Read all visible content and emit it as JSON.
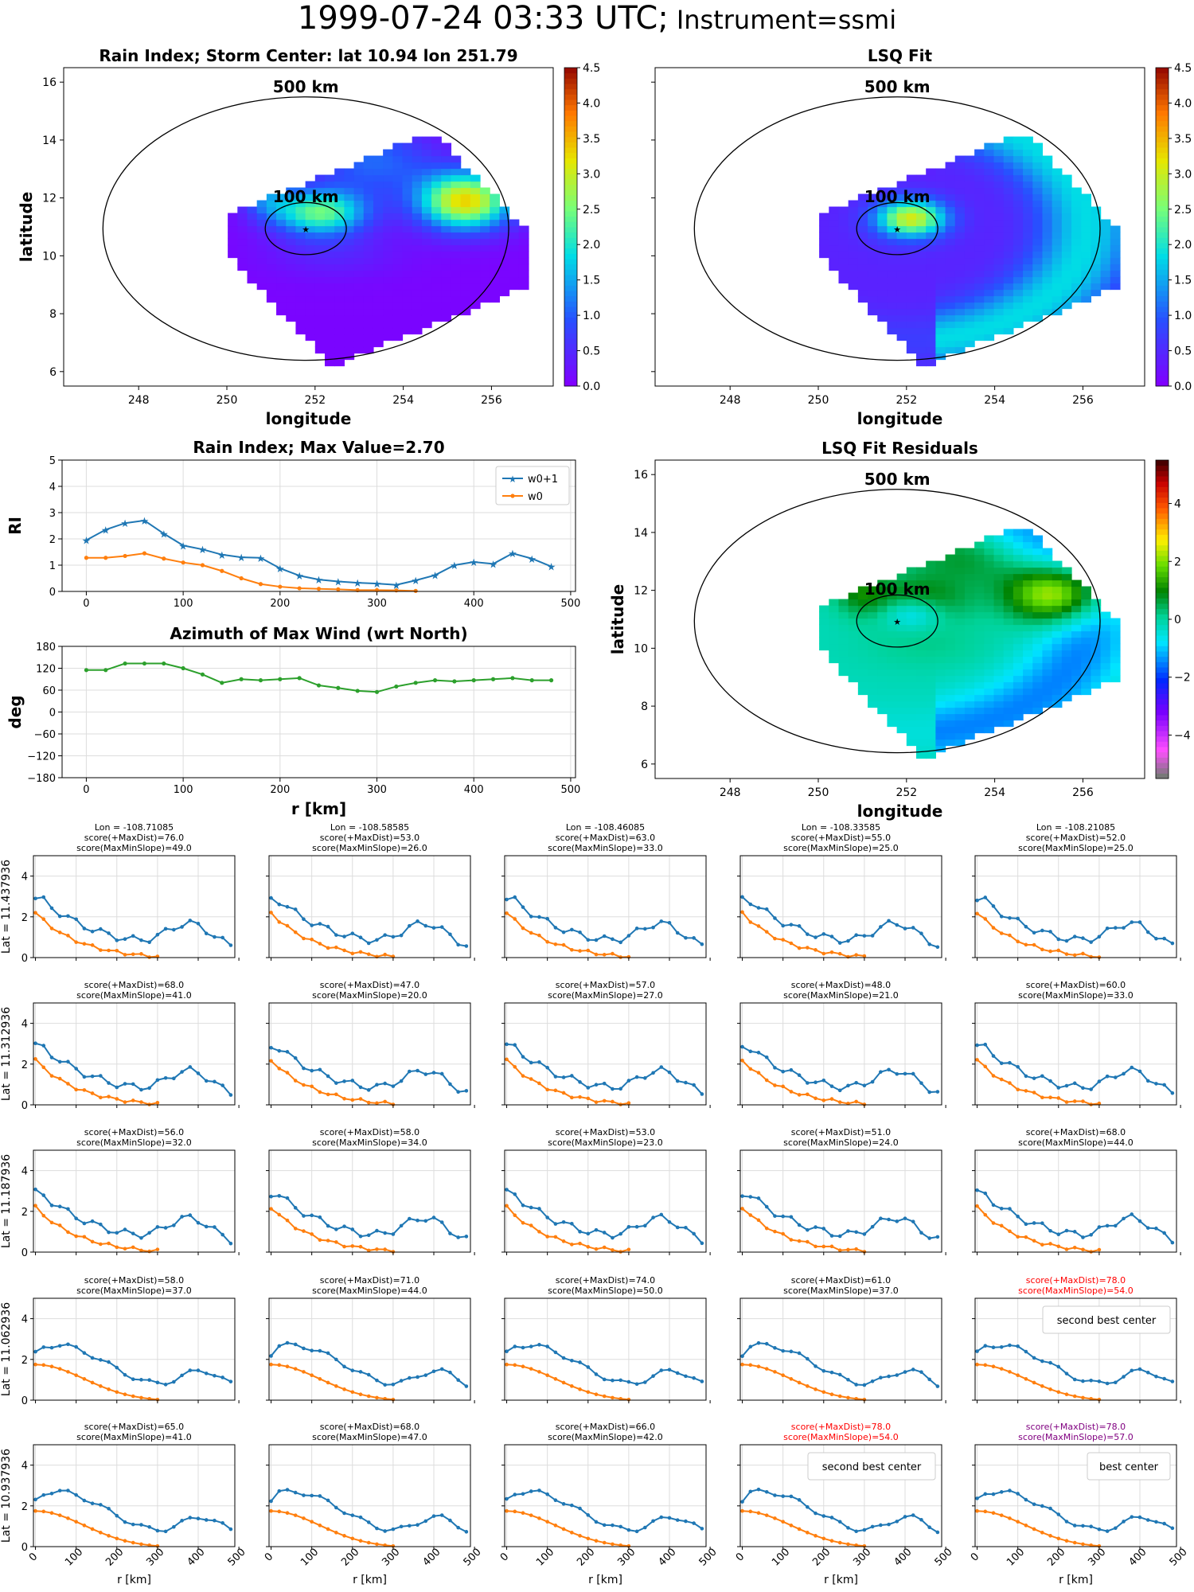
{
  "suptitle": {
    "time": "1999-07-24 03:33 UTC;",
    "instrument": "Instrument=ssmi"
  },
  "maps": [
    {
      "title": "Rain Index; Storm Center: lat 10.94 lon 251.79",
      "xlabel": "longitude",
      "ylabel": "latitude",
      "xticks": [
        "248",
        "250",
        "252",
        "254",
        "256"
      ],
      "yticks": [
        "6",
        "8",
        "10",
        "12",
        "14",
        "16"
      ],
      "ring_labels": [
        "500 km",
        "100 km"
      ],
      "colorbar_ticks": [
        "0.0",
        "0.5",
        "1.0",
        "1.5",
        "2.0",
        "2.5",
        "3.0",
        "3.5",
        "4.0",
        "4.5"
      ],
      "colormap": "jet"
    },
    {
      "title": "LSQ Fit",
      "xlabel": "longitude",
      "ylabel": "",
      "xticks": [
        "248",
        "250",
        "252",
        "254",
        "256"
      ],
      "yticks": [],
      "ring_labels": [
        "500 km",
        "100 km"
      ],
      "colorbar_ticks": [
        "0.0",
        "0.5",
        "1.0",
        "1.5",
        "2.0",
        "2.5",
        "3.0",
        "3.5",
        "4.0",
        "4.5"
      ],
      "colormap": "jet"
    },
    {
      "title": "LSQ Fit Residuals",
      "xlabel": "longitude",
      "ylabel": "latitude",
      "xticks": [
        "248",
        "250",
        "252",
        "254",
        "256"
      ],
      "yticks": [
        "6",
        "8",
        "10",
        "12",
        "14",
        "16"
      ],
      "ring_labels": [
        "500 km",
        "100 km"
      ],
      "colorbar_ticks": [
        "−4",
        "−2",
        "0",
        "2",
        "4"
      ],
      "colormap": "gist_ncar"
    }
  ],
  "chart_data": [
    {
      "type": "line",
      "title": "Rain Index; Max Value=2.70",
      "ylabel": "RI",
      "ylim": [
        0,
        5
      ],
      "yticks": [
        "0",
        "1",
        "2",
        "3",
        "4",
        "5"
      ],
      "xticks": [
        "0",
        "100",
        "200",
        "300",
        "400",
        "500"
      ],
      "xlim": [
        -25,
        505
      ],
      "x": [
        0,
        20,
        40,
        60,
        80,
        100,
        120,
        140,
        160,
        180,
        200,
        220,
        240,
        260,
        280,
        300,
        320,
        340,
        360,
        380,
        400,
        420,
        440,
        460,
        480
      ],
      "series": [
        {
          "name": "w0+1",
          "color": "#1f77b4",
          "marker": "star",
          "values": [
            1.95,
            2.35,
            2.6,
            2.7,
            2.2,
            1.75,
            1.6,
            1.4,
            1.3,
            1.28,
            0.88,
            0.6,
            0.45,
            0.38,
            0.33,
            0.3,
            0.25,
            0.42,
            0.62,
            1.0,
            1.12,
            1.05,
            1.45,
            1.25,
            0.95
          ]
        },
        {
          "name": "w0",
          "color": "#ff7f0e",
          "marker": "dot",
          "values": [
            1.28,
            1.28,
            1.35,
            1.45,
            1.25,
            1.1,
            1.0,
            0.78,
            0.5,
            0.28,
            0.18,
            0.12,
            0.1,
            0.08,
            0.05,
            0.05,
            0.04,
            0.02,
            null,
            null,
            null,
            null,
            null,
            null,
            null
          ]
        }
      ]
    },
    {
      "type": "line",
      "title": "Azimuth of Max Wind (wrt North)",
      "ylabel": "deg",
      "xlabel": "r [km]",
      "ylim": [
        -180,
        180
      ],
      "yticks": [
        "180",
        "120",
        "60",
        "0",
        "−60",
        "−120",
        "−180"
      ],
      "xticks": [
        "0",
        "100",
        "200",
        "300",
        "400",
        "500"
      ],
      "xlim": [
        -25,
        505
      ],
      "x": [
        0,
        20,
        40,
        60,
        80,
        100,
        120,
        140,
        160,
        180,
        200,
        220,
        240,
        260,
        280,
        300,
        320,
        340,
        360,
        380,
        400,
        420,
        440,
        460,
        480
      ],
      "series": [
        {
          "color": "#2ca02c",
          "values": [
            115,
            115,
            133,
            133,
            133,
            120,
            103,
            80,
            90,
            87,
            90,
            93,
            73,
            66,
            58,
            55,
            70,
            80,
            87,
            84,
            87,
            90,
            93,
            87,
            87
          ]
        }
      ]
    },
    {
      "type": "line",
      "grid": "5x5 small multiples",
      "row_labels": [
        "Lat = 11.437936",
        "Lat = 11.312936",
        "Lat = 11.187936",
        "Lat = 11.062936",
        "Lat = 10.937936"
      ],
      "col_lons": [
        "Lon = -108.71085",
        "Lon = -108.58585",
        "Lon = -108.46085",
        "Lon = -108.33585",
        "Lon = -108.21085"
      ],
      "xlabel": "r [km]",
      "ylim": [
        0,
        5
      ],
      "yticks": [
        "0",
        "2",
        "4"
      ],
      "xticks": [
        "0",
        "100",
        "200",
        "300",
        "400",
        "500"
      ],
      "cells": [
        [
          {
            "t1": "score(+MaxDist)=76.0",
            "t2": "score(MaxMinSlope)=49.0"
          },
          {
            "t1": "score(+MaxDist)=53.0",
            "t2": "score(MaxMinSlope)=26.0"
          },
          {
            "t1": "score(+MaxDist)=63.0",
            "t2": "score(MaxMinSlope)=33.0"
          },
          {
            "t1": "score(+MaxDist)=55.0",
            "t2": "score(MaxMinSlope)=25.0"
          },
          {
            "t1": "score(+MaxDist)=52.0",
            "t2": "score(MaxMinSlope)=25.0"
          }
        ],
        [
          {
            "t1": "score(+MaxDist)=68.0",
            "t2": "score(MaxMinSlope)=41.0"
          },
          {
            "t1": "score(+MaxDist)=47.0",
            "t2": "score(MaxMinSlope)=20.0"
          },
          {
            "t1": "score(+MaxDist)=57.0",
            "t2": "score(MaxMinSlope)=27.0"
          },
          {
            "t1": "score(+MaxDist)=48.0",
            "t2": "score(MaxMinSlope)=21.0"
          },
          {
            "t1": "score(+MaxDist)=60.0",
            "t2": "score(MaxMinSlope)=33.0"
          }
        ],
        [
          {
            "t1": "score(+MaxDist)=56.0",
            "t2": "score(MaxMinSlope)=32.0"
          },
          {
            "t1": "score(+MaxDist)=58.0",
            "t2": "score(MaxMinSlope)=34.0"
          },
          {
            "t1": "score(+MaxDist)=53.0",
            "t2": "score(MaxMinSlope)=23.0"
          },
          {
            "t1": "score(+MaxDist)=51.0",
            "t2": "score(MaxMinSlope)=24.0"
          },
          {
            "t1": "score(+MaxDist)=68.0",
            "t2": "score(MaxMinSlope)=44.0"
          }
        ],
        [
          {
            "t1": "score(+MaxDist)=58.0",
            "t2": "score(MaxMinSlope)=37.0"
          },
          {
            "t1": "score(+MaxDist)=71.0",
            "t2": "score(MaxMinSlope)=44.0"
          },
          {
            "t1": "score(+MaxDist)=74.0",
            "t2": "score(MaxMinSlope)=50.0"
          },
          {
            "t1": "score(+MaxDist)=61.0",
            "t2": "score(MaxMinSlope)=37.0"
          },
          {
            "t1": "score(+MaxDist)=78.0",
            "t2": "score(MaxMinSlope)=54.0",
            "color": "#ff0000",
            "note": "second best center"
          }
        ],
        [
          {
            "t1": "score(+MaxDist)=65.0",
            "t2": "score(MaxMinSlope)=41.0"
          },
          {
            "t1": "score(+MaxDist)=68.0",
            "t2": "score(MaxMinSlope)=47.0"
          },
          {
            "t1": "score(+MaxDist)=66.0",
            "t2": "score(MaxMinSlope)=42.0"
          },
          {
            "t1": "score(+MaxDist)=78.0",
            "t2": "score(MaxMinSlope)=54.0",
            "color": "#ff0000",
            "note": "second best center"
          },
          {
            "t1": "score(+MaxDist)=78.0",
            "t2": "score(MaxMinSlope)=57.0",
            "color": "#800080",
            "note": "best center"
          }
        ]
      ]
    }
  ]
}
